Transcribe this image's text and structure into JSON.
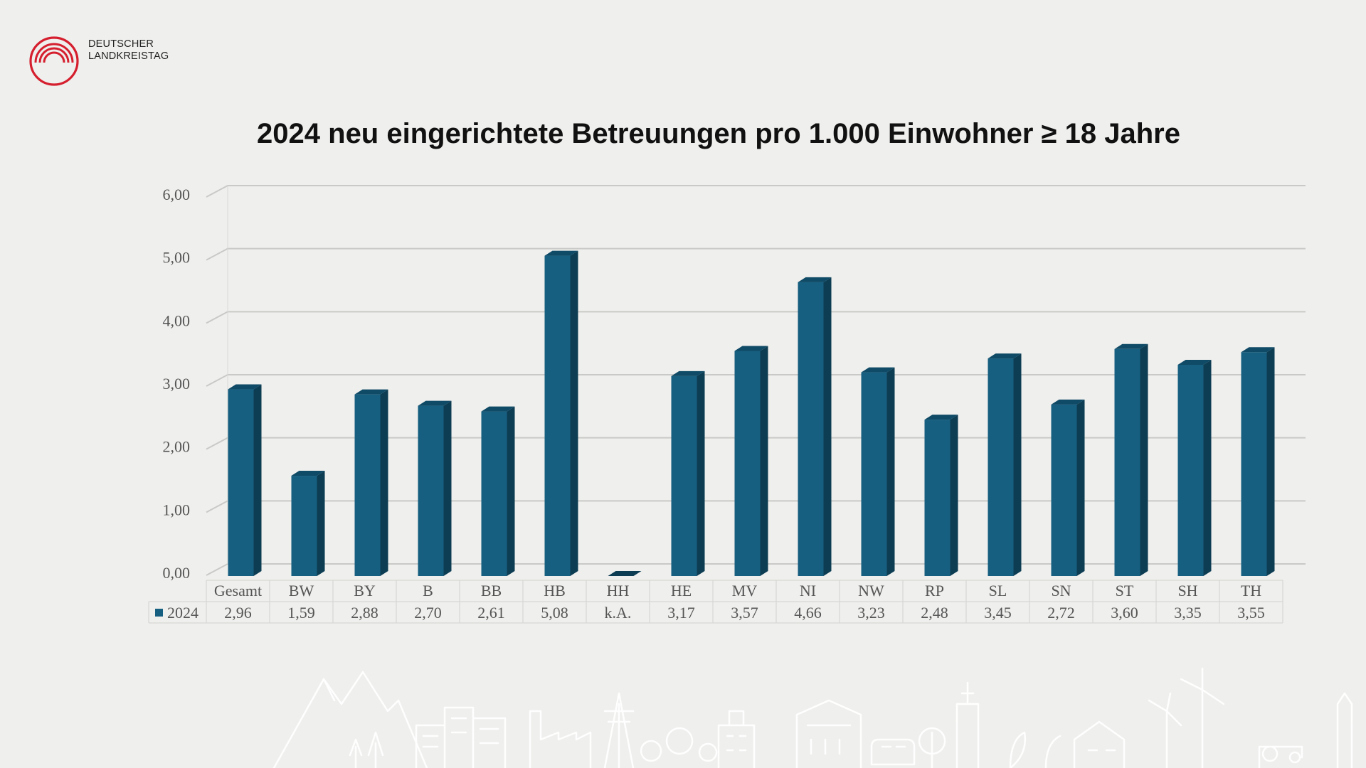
{
  "logo": {
    "line1": "DEUTSCHER",
    "line2": "LANDKREISTAG",
    "color": "#d51f2e"
  },
  "chart_data": {
    "type": "bar",
    "title": "2024 neu eingerichtete Betreuungen pro 1.000 Einwohner ≥ 18 Jahre",
    "xlabel": "",
    "ylabel": "",
    "ylim": [
      0,
      6
    ],
    "yticks": [
      "0,00",
      "1,00",
      "2,00",
      "3,00",
      "4,00",
      "5,00",
      "6,00"
    ],
    "grid": true,
    "legend": "table-left",
    "categories": [
      "Gesamt",
      "BW",
      "BY",
      "B",
      "BB",
      "HB",
      "HH",
      "HE",
      "MV",
      "NI",
      "NW",
      "RP",
      "SL",
      "SN",
      "ST",
      "SH",
      "TH"
    ],
    "series": [
      {
        "name": "2024",
        "color": "#175f80",
        "values": [
          2.96,
          1.59,
          2.88,
          2.7,
          2.61,
          5.08,
          0,
          3.17,
          3.57,
          4.66,
          3.23,
          2.48,
          3.45,
          2.72,
          3.6,
          3.35,
          3.55
        ],
        "labels": [
          "2,96",
          "1,59",
          "2,88",
          "2,70",
          "2,61",
          "5,08",
          "k.A.",
          "3,17",
          "3,57",
          "4,66",
          "3,23",
          "2,48",
          "3,45",
          "2,72",
          "3,60",
          "3,35",
          "3,55"
        ]
      }
    ]
  }
}
